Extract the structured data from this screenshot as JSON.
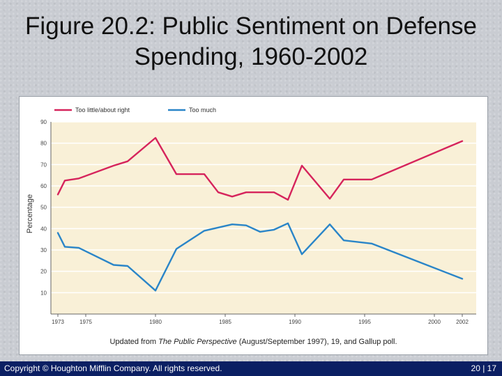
{
  "slide": {
    "title_line1": "Figure 20.2: Public Sentiment on Defense",
    "title_line2": "Spending, 1960-2002",
    "caption_prefix": "Updated from ",
    "caption_italic": "The Public Perspective",
    "caption_suffix": " (August/September 1997), 19, and Gallup poll.",
    "copyright": "Copyright © Houghton Mifflin Company. All rights reserved.",
    "page_number": "20 | 17"
  },
  "chart_data": {
    "type": "line",
    "title": "",
    "xlabel": "",
    "ylabel": "Percentage",
    "xlim": [
      1972.5,
      2003
    ],
    "ylim": [
      0,
      90
    ],
    "yticks": [
      10,
      20,
      30,
      40,
      50,
      60,
      70,
      80,
      90
    ],
    "xticks": [
      "1973",
      "1975",
      "1980",
      "1985",
      "1990",
      "1995",
      "2000",
      "2002"
    ],
    "xtick_values": [
      1973,
      1975,
      1980,
      1985,
      1990,
      1995,
      2000,
      2002
    ],
    "grid": true,
    "legend_position": "top-left",
    "series": [
      {
        "name": "Too little/about right",
        "color": "#d6245c",
        "x": [
          1973,
          1973.5,
          1974.5,
          1977,
          1978,
          1980,
          1981.5,
          1983.5,
          1984.5,
          1985.5,
          1986.5,
          1988.5,
          1989.5,
          1990.5,
          1992.5,
          1993.5,
          1995.5,
          2002
        ],
        "y": [
          56,
          62.5,
          63.5,
          69.5,
          71.5,
          82.5,
          65.5,
          65.5,
          57,
          55,
          57,
          57,
          53.5,
          69.5,
          54,
          63,
          63,
          81
        ]
      },
      {
        "name": "Too much",
        "color": "#2a85c8",
        "x": [
          1973,
          1973.5,
          1974.5,
          1977,
          1978,
          1980,
          1981.5,
          1983.5,
          1984.5,
          1985.5,
          1986.5,
          1987.5,
          1988.5,
          1989.5,
          1990.5,
          1992.5,
          1993.5,
          1995.5,
          2002
        ],
        "y": [
          38,
          31.5,
          31,
          23,
          22.5,
          11,
          30.5,
          39,
          40.5,
          42,
          41.5,
          38.5,
          39.5,
          42.5,
          28,
          42,
          34.5,
          33,
          16.5
        ]
      }
    ]
  }
}
